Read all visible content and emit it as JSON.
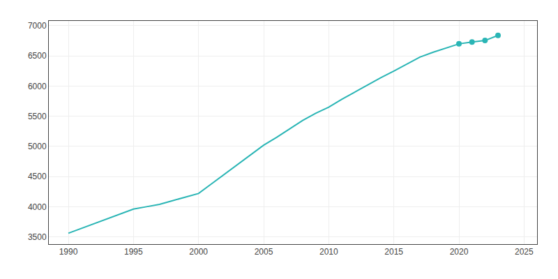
{
  "chart_data": {
    "type": "line",
    "x": [
      1990,
      1991,
      1992,
      1993,
      1994,
      1995,
      1996,
      1997,
      1998,
      1999,
      2000,
      2001,
      2002,
      2003,
      2004,
      2005,
      2006,
      2007,
      2008,
      2009,
      2010,
      2011,
      2012,
      2013,
      2014,
      2015,
      2016,
      2017,
      2018,
      2019,
      2020,
      2021,
      2022,
      2023
    ],
    "series": [
      {
        "color": "#2ab5b5",
        "values": [
          3560,
          3640,
          3720,
          3800,
          3880,
          3960,
          4000,
          4040,
          4100,
          4160,
          4220,
          4380,
          4540,
          4700,
          4860,
          5020,
          5150,
          5290,
          5430,
          5550,
          5650,
          5780,
          5900,
          6020,
          6140,
          6250,
          6370,
          6480,
          6560,
          6630,
          6700,
          6730,
          6755,
          6840
        ]
      },
      {
        "type": "scatter",
        "marker": "circle",
        "color": "#2ab5b5",
        "x": [
          2020,
          2021,
          2022,
          2023
        ],
        "values": [
          6700,
          6730,
          6755,
          6840
        ]
      }
    ],
    "xlim": [
      1988.5,
      2026
    ],
    "ylim": [
      3380,
      7080
    ],
    "xticks": [
      1990,
      1995,
      2000,
      2005,
      2010,
      2015,
      2020,
      2025
    ],
    "yticks": [
      3500,
      4000,
      4500,
      5000,
      5500,
      6000,
      6500,
      7000
    ],
    "grid": true
  }
}
